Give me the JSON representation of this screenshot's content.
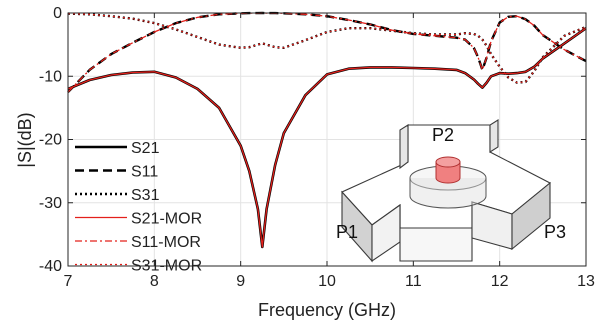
{
  "chart_data": {
    "type": "line",
    "xlabel": "Frequency (GHz)",
    "ylabel": "|S|(dB)",
    "xlim": [
      7,
      13
    ],
    "ylim": [
      -40,
      0
    ],
    "xticks": [
      "7",
      "8",
      "9",
      "10",
      "11",
      "12",
      "13"
    ],
    "yticks": [
      "0",
      "-10",
      "-20",
      "-30",
      "-40"
    ],
    "grid": true,
    "legend_position": "left",
    "x": [
      7.0,
      7.25,
      7.5,
      7.75,
      8.0,
      8.25,
      8.5,
      8.75,
      9.0,
      9.1,
      9.2,
      9.25,
      9.3,
      9.4,
      9.5,
      9.75,
      10.0,
      10.25,
      10.5,
      10.75,
      11.0,
      11.25,
      11.5,
      11.6,
      11.7,
      11.75,
      11.8,
      11.85,
      11.9,
      12.0,
      12.1,
      12.2,
      12.3,
      12.4,
      12.5,
      12.75,
      13.0
    ],
    "series": [
      {
        "name": "S21",
        "color": "#000000",
        "dash": "solid",
        "width": 2.6,
        "values": [
          -12.0,
          -10.6,
          -9.8,
          -9.4,
          -9.3,
          -10.2,
          -12.0,
          -15.0,
          -21.0,
          -25.0,
          -31.0,
          -37.0,
          -31.0,
          -24.0,
          -19.0,
          -13.0,
          -9.7,
          -8.8,
          -8.6,
          -8.6,
          -8.7,
          -8.8,
          -9.0,
          -9.5,
          -10.5,
          -11.2,
          -11.8,
          -11.0,
          -10.0,
          -9.5,
          -9.6,
          -9.5,
          -9.3,
          -8.5,
          -7.2,
          -4.8,
          -2.4
        ]
      },
      {
        "name": "S11",
        "color": "#000000",
        "dash": "dash",
        "width": 2.4,
        "values": [
          -12.5,
          -9.0,
          -6.5,
          -4.7,
          -3.0,
          -1.6,
          -0.7,
          -0.2,
          -0.05,
          -0.02,
          -0.01,
          -0.0,
          -0.01,
          -0.02,
          -0.05,
          -0.2,
          -0.5,
          -1.1,
          -1.8,
          -2.7,
          -3.3,
          -3.6,
          -3.9,
          -4.2,
          -5.5,
          -7.0,
          -9.0,
          -7.0,
          -4.5,
          -1.5,
          -0.6,
          -0.5,
          -1.0,
          -2.0,
          -3.5,
          -5.8,
          -7.6
        ]
      },
      {
        "name": "S31",
        "color": "#000000",
        "dash": "dot",
        "width": 2.4,
        "values": [
          -0.1,
          -0.2,
          -0.5,
          -0.9,
          -1.6,
          -2.6,
          -3.8,
          -5.0,
          -5.5,
          -5.4,
          -5.0,
          -4.8,
          -5.0,
          -5.4,
          -5.5,
          -4.3,
          -3.0,
          -2.4,
          -2.4,
          -2.8,
          -3.2,
          -3.4,
          -3.4,
          -3.2,
          -3.3,
          -3.6,
          -4.2,
          -5.2,
          -6.5,
          -8.5,
          -10.2,
          -11.0,
          -10.9,
          -9.2,
          -7.0,
          -3.6,
          -2.2
        ]
      },
      {
        "name": "S21-MOR",
        "color": "#e3201b",
        "dash": "solid",
        "width": 1.3,
        "values": [
          -12.0,
          -10.6,
          -9.8,
          -9.4,
          -9.3,
          -10.2,
          -12.0,
          -15.0,
          -21.0,
          -25.0,
          -31.0,
          -37.0,
          -31.0,
          -24.0,
          -19.0,
          -13.0,
          -9.7,
          -8.8,
          -8.6,
          -8.6,
          -8.7,
          -8.8,
          -9.0,
          -9.5,
          -10.5,
          -11.2,
          -11.8,
          -11.0,
          -10.0,
          -9.5,
          -9.6,
          -9.5,
          -9.3,
          -8.5,
          -7.2,
          -4.8,
          -2.4
        ]
      },
      {
        "name": "S11-MOR",
        "color": "#e3201b",
        "dash": "dashdot",
        "width": 1.3,
        "values": [
          -12.5,
          -9.0,
          -6.5,
          -4.7,
          -3.0,
          -1.6,
          -0.7,
          -0.2,
          -0.05,
          -0.02,
          -0.01,
          -0.0,
          -0.01,
          -0.02,
          -0.05,
          -0.2,
          -0.5,
          -1.1,
          -1.8,
          -2.7,
          -3.3,
          -3.6,
          -3.9,
          -4.2,
          -5.5,
          -7.0,
          -9.0,
          -7.0,
          -4.5,
          -1.5,
          -0.6,
          -0.5,
          -1.0,
          -2.0,
          -3.5,
          -5.8,
          -7.6
        ]
      },
      {
        "name": "S31-MOR",
        "color": "#e3201b",
        "dash": "dot",
        "width": 1.2,
        "values": [
          -0.1,
          -0.2,
          -0.5,
          -0.9,
          -1.6,
          -2.6,
          -3.8,
          -5.0,
          -5.5,
          -5.4,
          -5.0,
          -4.8,
          -5.0,
          -5.4,
          -5.5,
          -4.3,
          -3.0,
          -2.4,
          -2.4,
          -2.8,
          -3.2,
          -3.4,
          -3.4,
          -3.2,
          -3.3,
          -3.6,
          -4.2,
          -5.2,
          -6.5,
          -8.5,
          -10.2,
          -11.0,
          -10.9,
          -9.2,
          -7.0,
          -3.6,
          -2.2
        ]
      }
    ],
    "inset": {
      "ports": [
        "P1",
        "P2",
        "P3"
      ],
      "resonator_color": "#f08080"
    }
  }
}
